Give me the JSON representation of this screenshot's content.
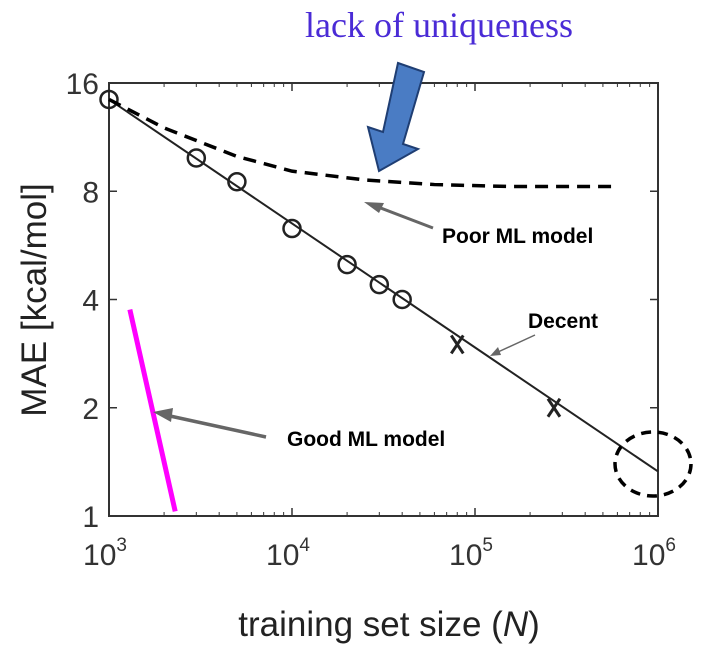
{
  "colors": {
    "title": "#4a2bd6",
    "good_line": "#ff00ff",
    "thick_arrow": "#4a7cc4",
    "thick_arrow_stroke": "#1f3e73",
    "gray_arrow": "#666666"
  },
  "title_text": "lack of uniqueness",
  "chart_data": {
    "type": "line",
    "xscale": "log",
    "yscale": "log",
    "xlim": [
      1000,
      1000000
    ],
    "ylim": [
      1,
      16
    ],
    "xlabel_main": "training set size (",
    "xlabel_var": "N",
    "xlabel_close": ")",
    "ylabel": "MAE [kcal/mol]",
    "x_ticks": [
      {
        "value": 1000,
        "base": "10",
        "exp": "3"
      },
      {
        "value": 10000,
        "base": "10",
        "exp": "4"
      },
      {
        "value": 100000,
        "base": "10",
        "exp": "5"
      },
      {
        "value": 1000000,
        "base": "10",
        "exp": "6"
      }
    ],
    "y_ticks": [
      {
        "value": 1,
        "label": "1"
      },
      {
        "value": 2,
        "label": "2"
      },
      {
        "value": 4,
        "label": "4"
      },
      {
        "value": 8,
        "label": "8"
      },
      {
        "value": 16,
        "label": "16"
      }
    ],
    "series": [
      {
        "style": "solid-line",
        "x": [
          1000,
          1000000
        ],
        "y": [
          14.4,
          1.33
        ]
      },
      {
        "style": "circle-markers",
        "x": [
          1000,
          3000,
          5000,
          10000,
          20000,
          30000,
          40000
        ],
        "y": [
          14.4,
          9.9,
          8.5,
          6.3,
          5.0,
          4.4,
          4.0
        ]
      },
      {
        "style": "x-markers",
        "x": [
          80000,
          270000
        ],
        "y": [
          3.0,
          2.0
        ]
      },
      {
        "style": "dashed-line",
        "x": [
          1000,
          2000,
          5000,
          10000,
          25000,
          60000,
          150000,
          600000
        ],
        "y": [
          14.4,
          12.0,
          10.0,
          9.1,
          8.6,
          8.35,
          8.25,
          8.25
        ]
      },
      {
        "style": "magenta-line",
        "x": [
          1300,
          2300
        ],
        "y": [
          3.75,
          1.03
        ]
      }
    ],
    "annotations": {
      "poor": "Poor ML model",
      "decent": "Decent",
      "good": "Good ML model"
    }
  }
}
